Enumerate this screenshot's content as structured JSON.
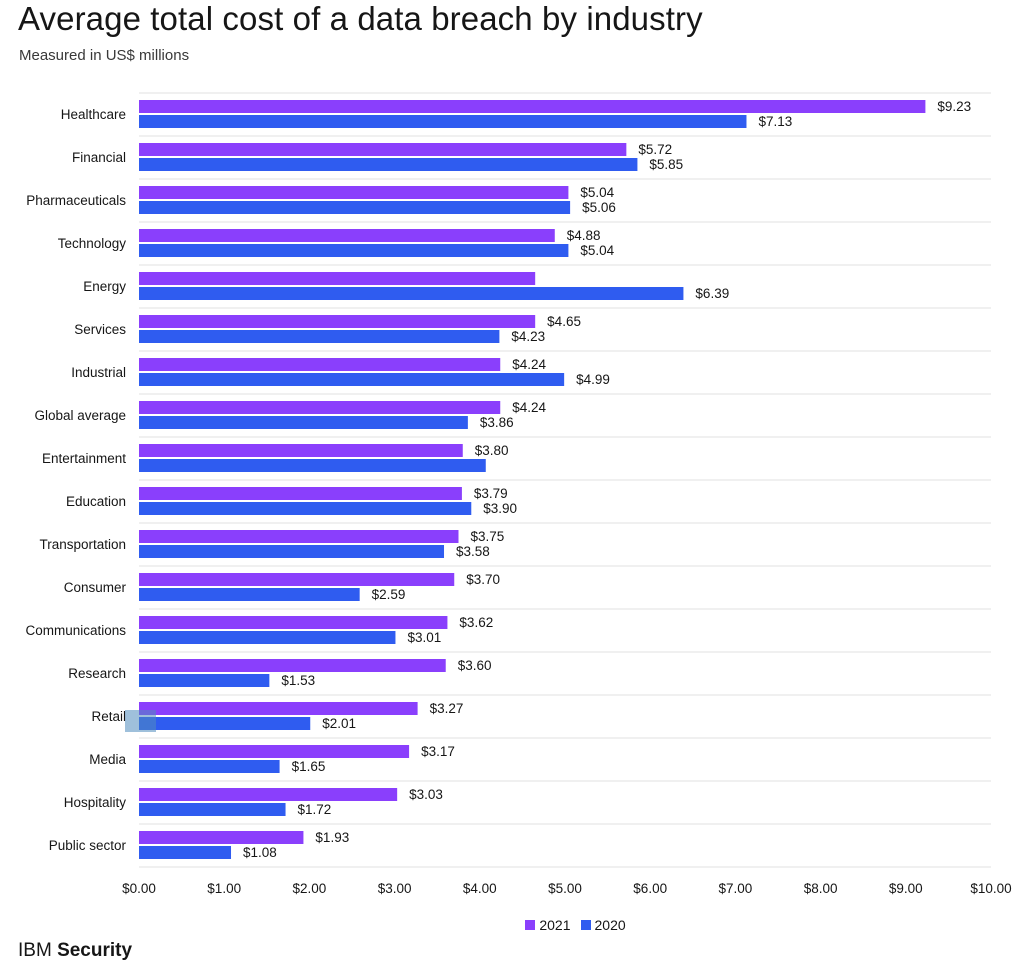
{
  "title": "Average total cost of a data breach by industry",
  "subtitle": "Measured in US$ millions",
  "brand": {
    "name_light": "IBM",
    "name_bold": "Security"
  },
  "colors": {
    "s2021": "#8a3ffc",
    "s2020": "#2f5cf0",
    "grid": "#e0e0e0"
  },
  "chart_data": {
    "type": "bar",
    "orientation": "horizontal",
    "categories": [
      "Healthcare",
      "Financial",
      "Pharmaceuticals",
      "Technology",
      "Energy",
      "Services",
      "Industrial",
      "Global average",
      "Entertainment",
      "Education",
      "Transportation",
      "Consumer",
      "Communications",
      "Research",
      "Retail",
      "Media",
      "Hospitality",
      "Public sector"
    ],
    "series": [
      {
        "name": "2021",
        "values": [
          9.23,
          5.72,
          5.04,
          4.88,
          4.65,
          4.65,
          4.24,
          4.24,
          3.8,
          3.79,
          3.75,
          3.7,
          3.62,
          3.6,
          3.27,
          3.17,
          3.03,
          1.93
        ],
        "labels": [
          "$9.23",
          "$5.72",
          "$5.04",
          "$4.88",
          "",
          "$4.65",
          "$4.24",
          "$4.24",
          "$3.80",
          "$3.79",
          "$3.75",
          "$3.70",
          "$3.62",
          "$3.60",
          "$3.27",
          "$3.17",
          "$3.03",
          "$1.93"
        ]
      },
      {
        "name": "2020",
        "values": [
          7.13,
          5.85,
          5.06,
          5.04,
          6.39,
          4.23,
          4.99,
          3.86,
          4.07,
          3.9,
          3.58,
          2.59,
          3.01,
          1.53,
          2.01,
          1.65,
          1.72,
          1.08
        ],
        "labels": [
          "$7.13",
          "$5.85",
          "$5.06",
          "$5.04",
          "$6.39",
          "$4.23",
          "$4.99",
          "$3.86",
          "",
          "$3.90",
          "$3.58",
          "$2.59",
          "$3.01",
          "$1.53",
          "$2.01",
          "$1.65",
          "$1.72",
          "$1.08"
        ]
      }
    ],
    "xlim": [
      0,
      10
    ],
    "xticks": [
      "$0.00",
      "$1.00",
      "$2.00",
      "$3.00",
      "$4.00",
      "$5.00",
      "$6.00",
      "$7.00",
      "$8.00",
      "$9.00",
      "$10.00"
    ],
    "grid": true,
    "legend": "bottom-center"
  }
}
